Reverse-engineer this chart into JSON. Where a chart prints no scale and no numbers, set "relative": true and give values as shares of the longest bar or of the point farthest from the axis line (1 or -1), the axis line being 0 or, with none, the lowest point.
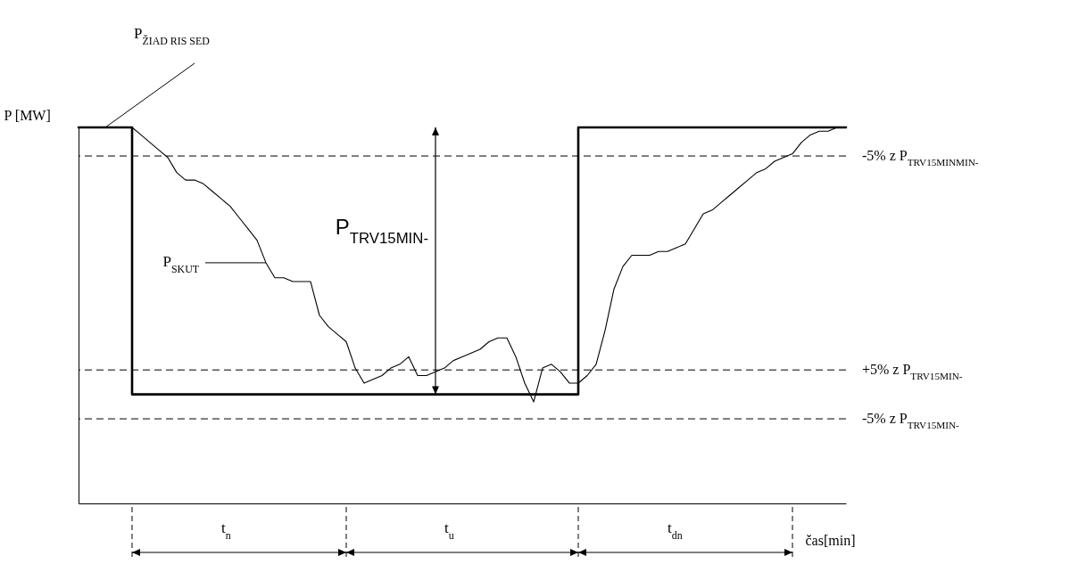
{
  "chart_data": {
    "type": "line",
    "relative": true,
    "xlabel": "čas[min]",
    "ylabel": "P [MW]",
    "categories": [
      null,
      null,
      null,
      null,
      null,
      null,
      null,
      null,
      null,
      null,
      null,
      null,
      null,
      null,
      null,
      null,
      null,
      null,
      null,
      null,
      null,
      null,
      null,
      null,
      null,
      null,
      null,
      null,
      null,
      null,
      null,
      null,
      null,
      null,
      null,
      null,
      null,
      null,
      null,
      null,
      null,
      null,
      null,
      null,
      null,
      null,
      null,
      null,
      null,
      null,
      null,
      null,
      null,
      null,
      null,
      null,
      null,
      null,
      null,
      null,
      null,
      null,
      null,
      null,
      null,
      null,
      null,
      null,
      null,
      null,
      null,
      null,
      null,
      null,
      null,
      null,
      null,
      null,
      null,
      null,
      null,
      null,
      null,
      null,
      null,
      null,
      null
    ],
    "series": [
      {
        "name": "P$_{ŽIAD RIS SED}$",
        "type": "step",
        "color": "#000000",
        "values": [
          1,
          1,
          1,
          1,
          1,
          1,
          0.29,
          0.29,
          0.29,
          0.29,
          0.29,
          0.29,
          0.29,
          0.29,
          0.29,
          0.29,
          0.29,
          0.29,
          0.29,
          0.29,
          0.29,
          0.29,
          0.29,
          0.29,
          0.29,
          0.29,
          0.29,
          0.29,
          0.29,
          0.29,
          0.29,
          0.29,
          0.29,
          0.29,
          0.29,
          0.29,
          0.29,
          0.29,
          0.29,
          0.29,
          0.29,
          0.29,
          0.29,
          0.29,
          0.29,
          0.29,
          0.29,
          0.29,
          0.29,
          0.29,
          0.29,
          0.29,
          0.29,
          0.29,
          0.29,
          0.29,
          1,
          1,
          1,
          1,
          1,
          1,
          1,
          1,
          1,
          1,
          1,
          1,
          1,
          1,
          1,
          1,
          1,
          1,
          1,
          1,
          1,
          1,
          1,
          1,
          1,
          1,
          1,
          1,
          1,
          1,
          1
        ]
      },
      {
        "name": "P$_{SKUT}$",
        "color": "#000000",
        "values": [
          null,
          null,
          null,
          null,
          null,
          null,
          1.0,
          0.98,
          0.96,
          0.94,
          0.92,
          0.88,
          0.86,
          0.86,
          0.85,
          0.83,
          0.81,
          0.79,
          0.76,
          0.73,
          0.7,
          0.64,
          0.6,
          0.6,
          0.59,
          0.59,
          0.59,
          0.5,
          0.47,
          0.45,
          0.43,
          0.36,
          0.32,
          0.33,
          0.34,
          0.36,
          0.37,
          0.39,
          0.34,
          0.34,
          0.35,
          0.36,
          0.38,
          0.39,
          0.4,
          0.41,
          0.43,
          0.44,
          0.44,
          0.39,
          0.32,
          0.27,
          0.36,
          0.37,
          0.35,
          0.32,
          0.32,
          0.34,
          0.37,
          0.46,
          0.57,
          0.63,
          0.66,
          0.66,
          0.66,
          0.67,
          0.67,
          0.68,
          0.69,
          0.73,
          0.77,
          0.78,
          0.8,
          0.82,
          0.84,
          0.86,
          0.88,
          0.89,
          0.91,
          0.92,
          0.93,
          0.96,
          0.98,
          0.99,
          0.99,
          1.0,
          1.0
        ]
      }
    ],
    "ref_lines": [
      {
        "axis": "y",
        "value": 0.924,
        "label": "-5% z P$_{TRV15MINMIN-}$",
        "line_style": "dashed"
      },
      {
        "axis": "y",
        "value": 0.355,
        "label": "+5% z P$_{TRV15MIN-}$",
        "line_style": "dashed"
      },
      {
        "axis": "y",
        "value": 0.225,
        "label": "-5% z P$_{TRV15MIN-}$",
        "line_style": "dashed"
      }
    ],
    "annotations": [
      "P$_{TRV15MIN-}$",
      "t$_{n}$",
      "t$_{u}$",
      "t$_{dn}$"
    ]
  }
}
